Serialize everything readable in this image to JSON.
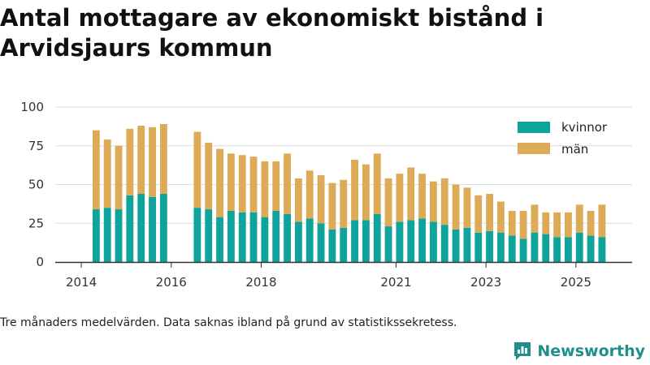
{
  "title": "Antal mottagare av ekonomiskt bistånd i Arvidsjaurs kommun",
  "footnote": "Tre månaders medelvärden. Data saknas ibland på grund av statistikssekretess.",
  "brand": {
    "name": "Newsworthy",
    "icon": "newsworthy-logo-icon"
  },
  "colors": {
    "kvinnor": "#0ea39b",
    "man": "#ddab57",
    "grid": "#dddddd",
    "axis": "#333333"
  },
  "chart_data": {
    "type": "bar",
    "stacked": true,
    "title": "Antal mottagare av ekonomiskt bistånd i Arvidsjaurs kommun",
    "xlabel": "",
    "ylabel": "",
    "ylim": [
      0,
      100
    ],
    "yticks": [
      0,
      25,
      50,
      75,
      100
    ],
    "xlim": [
      2013.42,
      2026.25
    ],
    "xticks": [
      {
        "value": 2014,
        "label": "2014"
      },
      {
        "value": 2016,
        "label": "2016"
      },
      {
        "value": 2018,
        "label": "2018"
      },
      {
        "value": 2021,
        "label": "2021"
      },
      {
        "value": 2023,
        "label": "2023"
      },
      {
        "value": 2025,
        "label": "2025"
      }
    ],
    "bar_width_years": 0.16,
    "legend": {
      "position": "top-right",
      "entries": [
        "kvinnor",
        "män"
      ]
    },
    "x": [
      2014.33,
      2014.58,
      2014.83,
      2015.08,
      2015.33,
      2015.58,
      2015.83,
      2016.58,
      2016.83,
      2017.08,
      2017.33,
      2017.58,
      2017.83,
      2018.08,
      2018.33,
      2018.58,
      2018.83,
      2019.08,
      2019.33,
      2019.58,
      2019.83,
      2020.08,
      2020.33,
      2020.58,
      2020.83,
      2021.08,
      2021.33,
      2021.58,
      2021.83,
      2022.08,
      2022.33,
      2022.58,
      2022.83,
      2023.08,
      2023.33,
      2023.58,
      2023.83,
      2024.08,
      2024.33,
      2024.58,
      2024.83,
      2025.08,
      2025.33,
      2025.58
    ],
    "series": [
      {
        "name": "kvinnor",
        "values": [
          34,
          35,
          34,
          43,
          44,
          42,
          44,
          35,
          34,
          29,
          33,
          32,
          32,
          29,
          33,
          31,
          26,
          28,
          25,
          21,
          22,
          27,
          27,
          31,
          23,
          26,
          27,
          28,
          26,
          24,
          21,
          22,
          19,
          20,
          19,
          17,
          15,
          19,
          18,
          16,
          16,
          19,
          17,
          16
        ]
      },
      {
        "name": "män",
        "values": [
          51,
          44,
          41,
          43,
          44,
          45,
          45,
          49,
          43,
          44,
          37,
          37,
          36,
          36,
          32,
          39,
          28,
          31,
          31,
          30,
          31,
          39,
          36,
          39,
          31,
          31,
          34,
          29,
          26,
          30,
          29,
          26,
          24,
          24,
          20,
          16,
          18,
          18,
          14,
          16,
          16,
          18,
          16,
          21
        ]
      }
    ]
  }
}
